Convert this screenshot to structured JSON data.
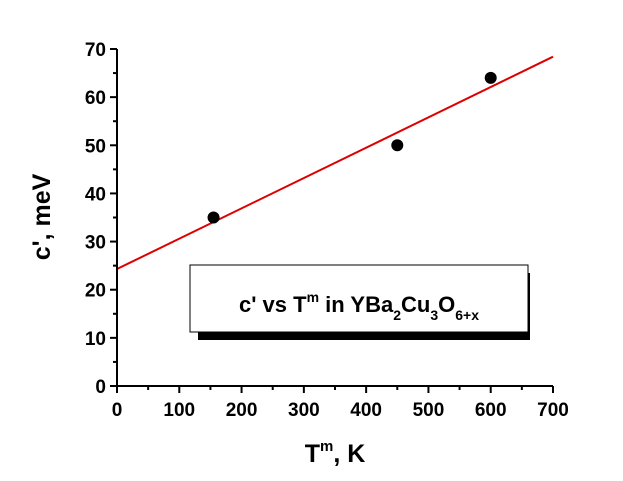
{
  "chart_data": {
    "type": "scatter",
    "x": [
      155,
      450,
      600
    ],
    "values": [
      35,
      50,
      64
    ],
    "color": "#000000",
    "fit": {
      "x": [
        0,
        700
      ],
      "values": [
        24.3,
        68.4
      ],
      "color": "#dd0000"
    },
    "xlabel": [
      "T",
      "m",
      ", K"
    ],
    "ylabel": "c', meV",
    "annotation": [
      "c' vs T",
      "m",
      " in YBa",
      "2",
      "Cu",
      "3",
      "O",
      "6+x"
    ],
    "xlim": [
      0,
      700
    ],
    "xticks": [
      0,
      100,
      200,
      300,
      400,
      500,
      600,
      700
    ],
    "xminor_ticks": [
      50,
      150,
      250,
      350,
      450,
      550,
      650
    ],
    "ylim": [
      0,
      70
    ],
    "yticks": [
      0,
      10,
      20,
      30,
      40,
      50,
      60,
      70
    ],
    "yminor_ticks": [
      5,
      15,
      25,
      35,
      45,
      55,
      65
    ]
  }
}
